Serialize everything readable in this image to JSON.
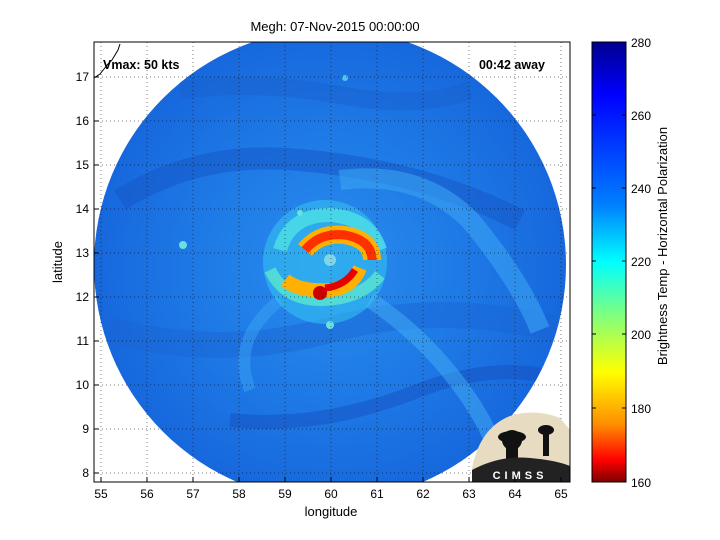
{
  "title": "Megh: 07-Nov-2015 00:00:00",
  "vmax_label": "Vmax: 50 kts",
  "time_away_label": "00:42 away",
  "xlabel": "longitude",
  "ylabel": "latitude",
  "x_ticks": [
    "55",
    "56",
    "57",
    "58",
    "59",
    "60",
    "61",
    "62",
    "63",
    "64",
    "65"
  ],
  "y_ticks": [
    "8",
    "9",
    "10",
    "11",
    "12",
    "13",
    "14",
    "15",
    "16",
    "17"
  ],
  "colorbar": {
    "label": "Brightness Temp - Horizontal Polarization",
    "ticks": [
      "280",
      "260",
      "240",
      "220",
      "200",
      "180",
      "160"
    ],
    "range": [
      160,
      280
    ],
    "colors": [
      "#7f0000",
      "#ff0000",
      "#ff8c00",
      "#ffff00",
      "#7fff7f",
      "#00ffff",
      "#007fff",
      "#0000ff",
      "#00008f"
    ]
  },
  "logo": {
    "text": "CIMSS"
  },
  "map": {
    "lon_range": [
      54.8,
      65.2
    ],
    "lat_range": [
      7.8,
      17.8
    ],
    "storm_center": {
      "lon": 60.2,
      "lat": 12.8
    }
  }
}
